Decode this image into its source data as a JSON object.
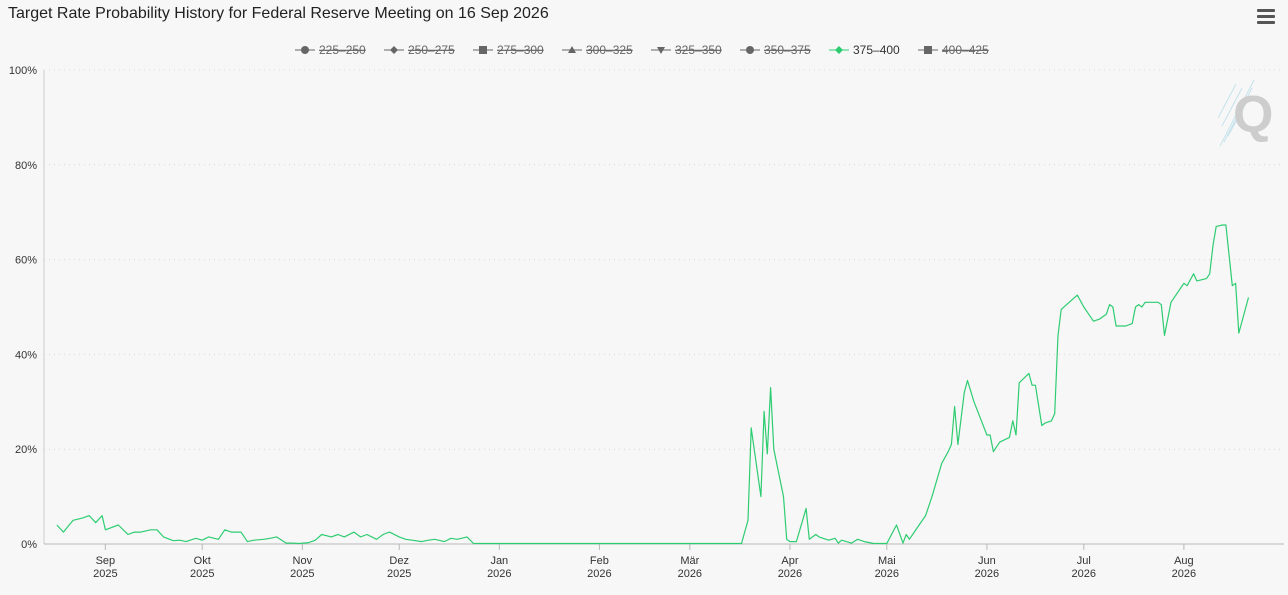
{
  "title": "Target Rate Probability History for Federal Reserve Meeting on 16 Sep 2026",
  "menu": {
    "icon": "hamburger-menu-icon"
  },
  "watermark": {
    "icon": "q-logo-icon",
    "letter": "Q"
  },
  "colors": {
    "active": "#2ecc71",
    "inactive": "#666666",
    "grid": "#d8d8d8",
    "axis": "#cccccc"
  },
  "chart_data": {
    "type": "line",
    "title": "Target Rate Probability History for Federal Reserve Meeting on 16 Sep 2026",
    "xlabel": "",
    "ylabel": "",
    "ylim": [
      0,
      100
    ],
    "y_ticks": [
      "0%",
      "20%",
      "40%",
      "60%",
      "80%",
      "100%"
    ],
    "y_tick_values": [
      0,
      20,
      40,
      60,
      80,
      100
    ],
    "x_range": [
      "2025-08-13",
      "2026-09-01"
    ],
    "x_ticks": [
      {
        "date": "2025-09-01",
        "month": "Sep",
        "year": "2025"
      },
      {
        "date": "2025-10-01",
        "month": "Okt",
        "year": "2025"
      },
      {
        "date": "2025-11-01",
        "month": "Nov",
        "year": "2025"
      },
      {
        "date": "2025-12-01",
        "month": "Dez",
        "year": "2025"
      },
      {
        "date": "2026-01-01",
        "month": "Jan",
        "year": "2026"
      },
      {
        "date": "2026-02-01",
        "month": "Feb",
        "year": "2026"
      },
      {
        "date": "2026-03-01",
        "month": "Mär",
        "year": "2026"
      },
      {
        "date": "2026-04-01",
        "month": "Apr",
        "year": "2026"
      },
      {
        "date": "2026-05-01",
        "month": "Mai",
        "year": "2026"
      },
      {
        "date": "2026-06-01",
        "month": "Jun",
        "year": "2026"
      },
      {
        "date": "2026-07-01",
        "month": "Jul",
        "year": "2026"
      },
      {
        "date": "2026-08-01",
        "month": "Aug",
        "year": "2026"
      }
    ],
    "grid": true,
    "legend_position": "top-center",
    "legend": [
      {
        "name": "225–250",
        "marker": "circle",
        "visible": false
      },
      {
        "name": "250–275",
        "marker": "diamond",
        "visible": false
      },
      {
        "name": "275–300",
        "marker": "square",
        "visible": false
      },
      {
        "name": "300–325",
        "marker": "triangle",
        "visible": false
      },
      {
        "name": "325–350",
        "marker": "triangle-down",
        "visible": false
      },
      {
        "name": "350–375",
        "marker": "circle",
        "visible": false
      },
      {
        "name": "375–400",
        "marker": "diamond",
        "visible": true
      },
      {
        "name": "400–425",
        "marker": "square",
        "visible": false
      }
    ],
    "series": [
      {
        "name": "375–400",
        "color": "#2ecc71",
        "points": [
          [
            "2025-08-17",
            4.0
          ],
          [
            "2025-08-19",
            2.5
          ],
          [
            "2025-08-22",
            5.0
          ],
          [
            "2025-08-25",
            5.5
          ],
          [
            "2025-08-27",
            6.0
          ],
          [
            "2025-08-29",
            4.5
          ],
          [
            "2025-08-31",
            6.0
          ],
          [
            "2025-09-01",
            3.0
          ],
          [
            "2025-09-03",
            3.5
          ],
          [
            "2025-09-05",
            4.0
          ],
          [
            "2025-09-08",
            2.0
          ],
          [
            "2025-09-10",
            2.5
          ],
          [
            "2025-09-12",
            2.5
          ],
          [
            "2025-09-15",
            3.0
          ],
          [
            "2025-09-17",
            3.0
          ],
          [
            "2025-09-19",
            1.5
          ],
          [
            "2025-09-22",
            0.7
          ],
          [
            "2025-09-24",
            0.8
          ],
          [
            "2025-09-26",
            0.5
          ],
          [
            "2025-09-29",
            1.2
          ],
          [
            "2025-10-01",
            0.8
          ],
          [
            "2025-10-03",
            1.5
          ],
          [
            "2025-10-06",
            1.0
          ],
          [
            "2025-10-08",
            3.0
          ],
          [
            "2025-10-10",
            2.5
          ],
          [
            "2025-10-13",
            2.5
          ],
          [
            "2025-10-15",
            0.5
          ],
          [
            "2025-10-17",
            0.8
          ],
          [
            "2025-10-20",
            1.0
          ],
          [
            "2025-10-22",
            1.2
          ],
          [
            "2025-10-24",
            1.5
          ],
          [
            "2025-10-27",
            0.2
          ],
          [
            "2025-10-29",
            0.2
          ],
          [
            "2025-10-31",
            0.1
          ],
          [
            "2025-11-03",
            0.3
          ],
          [
            "2025-11-05",
            0.8
          ],
          [
            "2025-11-07",
            2.0
          ],
          [
            "2025-11-10",
            1.5
          ],
          [
            "2025-11-12",
            2.0
          ],
          [
            "2025-11-14",
            1.5
          ],
          [
            "2025-11-17",
            2.5
          ],
          [
            "2025-11-19",
            1.5
          ],
          [
            "2025-11-21",
            2.0
          ],
          [
            "2025-11-24",
            1.0
          ],
          [
            "2025-11-26",
            2.0
          ],
          [
            "2025-11-28",
            2.5
          ],
          [
            "2025-12-01",
            1.5
          ],
          [
            "2025-12-03",
            1.0
          ],
          [
            "2025-12-05",
            0.8
          ],
          [
            "2025-12-08",
            0.5
          ],
          [
            "2025-12-10",
            0.8
          ],
          [
            "2025-12-12",
            1.0
          ],
          [
            "2025-12-15",
            0.5
          ],
          [
            "2025-12-17",
            1.2
          ],
          [
            "2025-12-19",
            1.0
          ],
          [
            "2025-12-22",
            1.5
          ],
          [
            "2025-12-24",
            0.1
          ],
          [
            "2026-01-05",
            0.1
          ],
          [
            "2026-01-20",
            0.1
          ],
          [
            "2026-02-05",
            0.1
          ],
          [
            "2026-02-20",
            0.1
          ],
          [
            "2026-03-05",
            0.1
          ],
          [
            "2026-03-17",
            0.1
          ],
          [
            "2026-03-19",
            5.0
          ],
          [
            "2026-03-20",
            24.5
          ],
          [
            "2026-03-23",
            10.0
          ],
          [
            "2026-03-24",
            28.0
          ],
          [
            "2026-03-25",
            19.0
          ],
          [
            "2026-03-26",
            33.0
          ],
          [
            "2026-03-27",
            20.0
          ],
          [
            "2026-03-30",
            10.0
          ],
          [
            "2026-03-31",
            1.0
          ],
          [
            "2026-04-01",
            0.5
          ],
          [
            "2026-04-03",
            0.5
          ],
          [
            "2026-04-06",
            7.5
          ],
          [
            "2026-04-07",
            1.0
          ],
          [
            "2026-04-09",
            2.0
          ],
          [
            "2026-04-10",
            1.5
          ],
          [
            "2026-04-13",
            0.8
          ],
          [
            "2026-04-15",
            1.2
          ],
          [
            "2026-04-16",
            0.2
          ],
          [
            "2026-04-17",
            0.8
          ],
          [
            "2026-04-20",
            0.2
          ],
          [
            "2026-04-22",
            1.0
          ],
          [
            "2026-04-24",
            0.5
          ],
          [
            "2026-04-27",
            0.1
          ],
          [
            "2026-04-29",
            0.1
          ],
          [
            "2026-05-01",
            0.1
          ],
          [
            "2026-05-04",
            4.0
          ],
          [
            "2026-05-06",
            0.2
          ],
          [
            "2026-05-07",
            2.0
          ],
          [
            "2026-05-08",
            1.0
          ],
          [
            "2026-05-11",
            4.0
          ],
          [
            "2026-05-13",
            6.0
          ],
          [
            "2026-05-15",
            10.0
          ],
          [
            "2026-05-18",
            17.0
          ],
          [
            "2026-05-20",
            19.5
          ],
          [
            "2026-05-21",
            21.0
          ],
          [
            "2026-05-22",
            29.0
          ],
          [
            "2026-05-23",
            21.0
          ],
          [
            "2026-05-25",
            32.0
          ],
          [
            "2026-05-26",
            34.5
          ],
          [
            "2026-05-28",
            30.0
          ],
          [
            "2026-06-01",
            23.0
          ],
          [
            "2026-06-02",
            23.0
          ],
          [
            "2026-06-03",
            19.5
          ],
          [
            "2026-06-05",
            21.5
          ],
          [
            "2026-06-08",
            22.5
          ],
          [
            "2026-06-09",
            26.0
          ],
          [
            "2026-06-10",
            23.0
          ],
          [
            "2026-06-11",
            34.0
          ],
          [
            "2026-06-14",
            36.0
          ],
          [
            "2026-06-15",
            33.5
          ],
          [
            "2026-06-16",
            33.5
          ],
          [
            "2026-06-18",
            25.0
          ],
          [
            "2026-06-19",
            25.5
          ],
          [
            "2026-06-21",
            26.0
          ],
          [
            "2026-06-22",
            27.5
          ],
          [
            "2026-06-23",
            44.0
          ],
          [
            "2026-06-24",
            49.5
          ],
          [
            "2026-06-29",
            52.5
          ],
          [
            "2026-07-01",
            50.0
          ],
          [
            "2026-07-02",
            49.0
          ],
          [
            "2026-07-04",
            47.0
          ],
          [
            "2026-07-06",
            47.5
          ],
          [
            "2026-07-08",
            48.5
          ],
          [
            "2026-07-09",
            50.5
          ],
          [
            "2026-07-10",
            50.0
          ],
          [
            "2026-07-11",
            46.0
          ],
          [
            "2026-07-14",
            46.0
          ],
          [
            "2026-07-16",
            46.5
          ],
          [
            "2026-07-17",
            50.0
          ],
          [
            "2026-07-18",
            50.5
          ],
          [
            "2026-07-19",
            50.0
          ],
          [
            "2026-07-20",
            51.0
          ],
          [
            "2026-07-24",
            51.0
          ],
          [
            "2026-07-25",
            50.5
          ],
          [
            "2026-07-26",
            44.0
          ],
          [
            "2026-07-28",
            51.0
          ],
          [
            "2026-07-31",
            54.0
          ],
          [
            "2026-08-01",
            55.0
          ],
          [
            "2026-08-02",
            54.5
          ],
          [
            "2026-08-04",
            57.0
          ],
          [
            "2026-08-05",
            55.5
          ],
          [
            "2026-08-08",
            56.0
          ],
          [
            "2026-08-09",
            57.0
          ],
          [
            "2026-08-10",
            63.0
          ],
          [
            "2026-08-11",
            67.0
          ],
          [
            "2026-08-13",
            67.3
          ],
          [
            "2026-08-14",
            67.3
          ],
          [
            "2026-08-16",
            54.5
          ],
          [
            "2026-08-17",
            55.0
          ],
          [
            "2026-08-18",
            44.5
          ],
          [
            "2026-08-21",
            52.0
          ]
        ]
      }
    ]
  }
}
